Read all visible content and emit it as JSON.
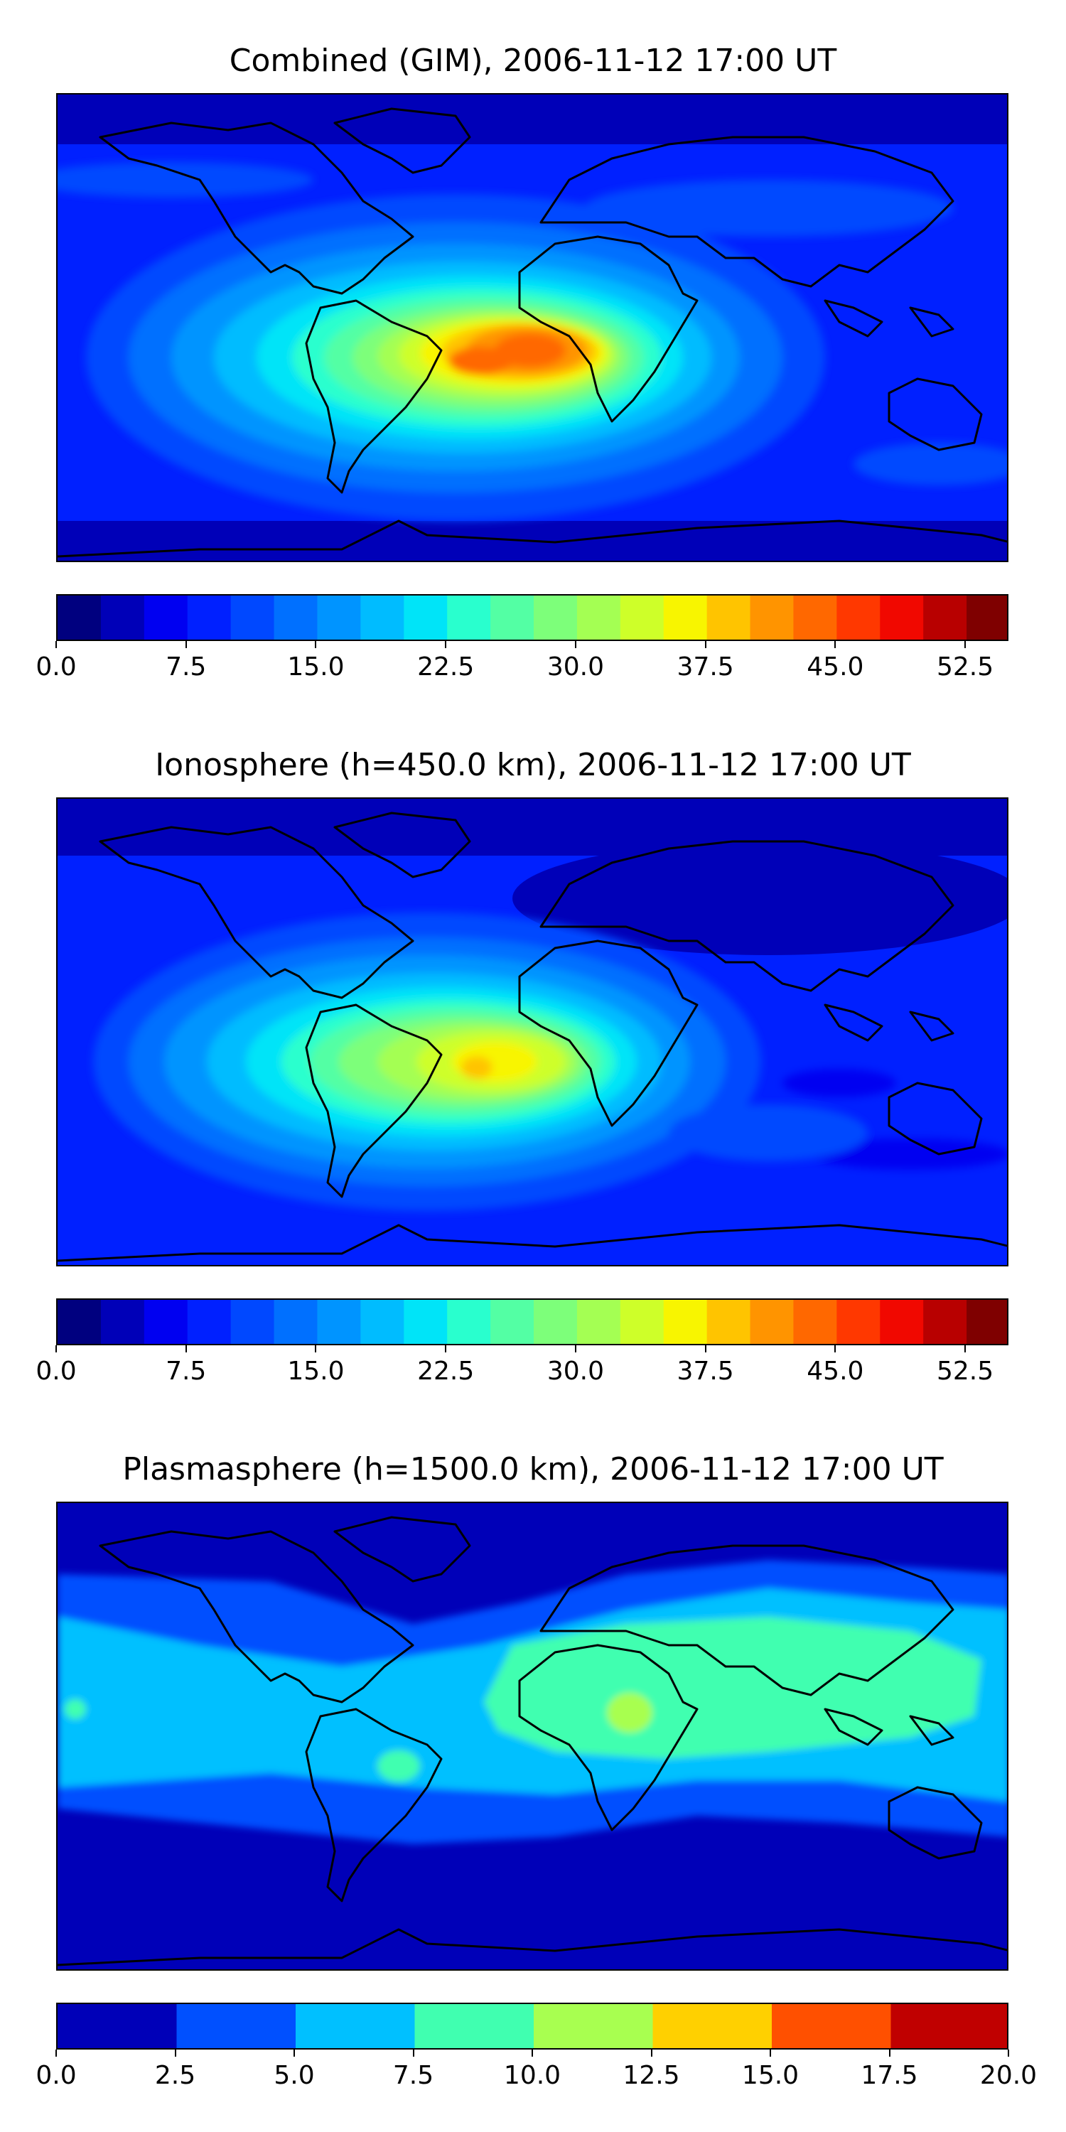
{
  "panels": [
    {
      "title": "Combined (GIM), 2006-11-12 17:00 UT",
      "colorbar": {
        "colors": [
          "#00007f",
          "#0000b8",
          "#0000f1",
          "#0020ff",
          "#0048ff",
          "#0070ff",
          "#0094ff",
          "#00bcff",
          "#00e4f8",
          "#29ffce",
          "#53ffa4",
          "#7dff7a",
          "#a4ff53",
          "#ceff29",
          "#f8f500",
          "#ffc400",
          "#ff9400",
          "#ff6800",
          "#ff3800",
          "#f10800",
          "#b80000",
          "#7f0000"
        ],
        "tick_values": [
          0.0,
          7.5,
          15.0,
          22.5,
          30.0,
          37.5,
          45.0,
          52.5
        ],
        "tick_labels": [
          "0.0",
          "7.5",
          "15.0",
          "22.5",
          "30.0",
          "37.5",
          "45.0",
          "52.5"
        ],
        "min": 0.0,
        "max": 55.0
      }
    },
    {
      "title": "Ionosphere  (h=450.0 km), 2006-11-12 17:00 UT",
      "colorbar": {
        "colors": [
          "#00007f",
          "#0000b8",
          "#0000f1",
          "#0020ff",
          "#0048ff",
          "#0070ff",
          "#0094ff",
          "#00bcff",
          "#00e4f8",
          "#29ffce",
          "#53ffa4",
          "#7dff7a",
          "#a4ff53",
          "#ceff29",
          "#f8f500",
          "#ffc400",
          "#ff9400",
          "#ff6800",
          "#ff3800",
          "#f10800",
          "#b80000",
          "#7f0000"
        ],
        "tick_values": [
          0.0,
          7.5,
          15.0,
          22.5,
          30.0,
          37.5,
          45.0,
          52.5
        ],
        "tick_labels": [
          "0.0",
          "7.5",
          "15.0",
          "22.5",
          "30.0",
          "37.5",
          "45.0",
          "52.5"
        ],
        "min": 0.0,
        "max": 55.0
      }
    },
    {
      "title": "Plasmasphere (h=1500.0 km), 2006-11-12 17:00 UT",
      "colorbar": {
        "colors": [
          "#0000b8",
          "#0050ff",
          "#00c0ff",
          "#40ffb0",
          "#a8ff50",
          "#ffd000",
          "#ff5000",
          "#c00000"
        ],
        "tick_values": [
          0.0,
          2.5,
          5.0,
          7.5,
          10.0,
          12.5,
          15.0,
          17.5,
          20.0
        ],
        "tick_labels": [
          "0.0",
          "2.5",
          "5.0",
          "7.5",
          "10.0",
          "12.5",
          "15.0",
          "17.5",
          "20.0"
        ],
        "min": 0.0,
        "max": 20.0
      }
    }
  ]
}
